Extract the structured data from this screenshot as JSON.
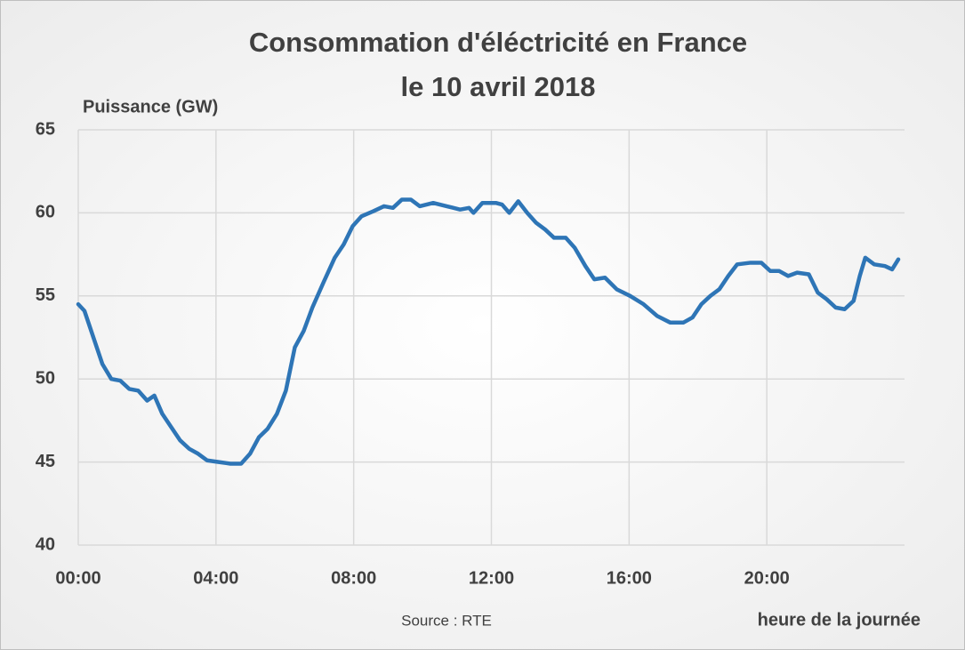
{
  "chart_data": {
    "type": "line",
    "title": [
      "Consommation d'éléctricité en France",
      "le 10 avril 2018"
    ],
    "y_label": "Puissance (GW)",
    "x_label": "heure de la journée",
    "source": "Source : RTE",
    "x": [
      0,
      0.18,
      0.44,
      0.7,
      0.96,
      1.22,
      1.48,
      1.74,
      2.0,
      2.21,
      2.44,
      2.7,
      2.96,
      3.22,
      3.48,
      3.74,
      4.08,
      4.42,
      4.73,
      4.99,
      5.25,
      5.5,
      5.77,
      6.03,
      6.29,
      6.55,
      6.8,
      7.12,
      7.45,
      7.71,
      7.97,
      8.23,
      8.57,
      8.88,
      9.14,
      9.4,
      9.66,
      9.92,
      10.31,
      10.7,
      11.09,
      11.35,
      11.48,
      11.74,
      12.13,
      12.31,
      12.52,
      12.78,
      13.04,
      13.3,
      13.56,
      13.82,
      14.16,
      14.42,
      14.73,
      14.99,
      15.3,
      15.64,
      16.03,
      16.42,
      16.81,
      17.19,
      17.58,
      17.84,
      18.1,
      18.36,
      18.62,
      18.88,
      19.14,
      19.53,
      19.84,
      20.1,
      20.36,
      20.62,
      20.88,
      21.22,
      21.48,
      21.74,
      22.0,
      22.26,
      22.52,
      22.7,
      22.86,
      23.12,
      23.43,
      23.64,
      23.82
    ],
    "series": [
      {
        "name": "Puissance",
        "color": "#2e75b6",
        "values": [
          54.5,
          54.1,
          52.5,
          50.9,
          50.0,
          49.9,
          49.4,
          49.3,
          48.7,
          49.0,
          47.9,
          47.1,
          46.3,
          45.8,
          45.5,
          45.1,
          45.0,
          44.9,
          44.9,
          45.5,
          46.5,
          47.0,
          47.9,
          49.3,
          51.9,
          52.9,
          54.3,
          55.8,
          57.3,
          58.1,
          59.2,
          59.8,
          60.1,
          60.4,
          60.3,
          60.8,
          60.8,
          60.4,
          60.6,
          60.4,
          60.2,
          60.3,
          60.0,
          60.6,
          60.6,
          60.5,
          60.0,
          60.7,
          60.0,
          59.4,
          59.0,
          58.5,
          58.5,
          57.9,
          56.8,
          56.0,
          56.1,
          55.4,
          55.0,
          54.5,
          53.8,
          53.4,
          53.4,
          53.7,
          54.5,
          55.0,
          55.4,
          56.2,
          56.9,
          57.0,
          57.0,
          56.5,
          56.5,
          56.2,
          56.4,
          56.3,
          55.2,
          54.8,
          54.3,
          54.2,
          54.7,
          56.2,
          57.3,
          56.9,
          56.8,
          56.6,
          57.2
        ]
      }
    ],
    "xlim": [
      0,
      24
    ],
    "xticks": [
      {
        "value": 0,
        "label": "00:00"
      },
      {
        "value": 4,
        "label": "04:00"
      },
      {
        "value": 8,
        "label": "08:00"
      },
      {
        "value": 12,
        "label": "12:00"
      },
      {
        "value": 16,
        "label": "16:00"
      },
      {
        "value": 20,
        "label": "20:00"
      }
    ],
    "ylim": [
      40,
      65
    ],
    "yticks": [
      40,
      45,
      50,
      55,
      60,
      65
    ],
    "grid": true
  }
}
